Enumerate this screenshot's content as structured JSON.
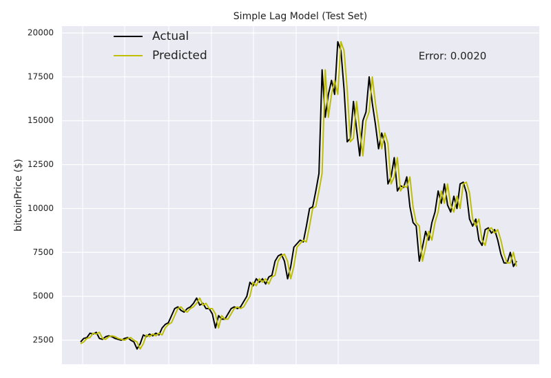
{
  "chart_data": {
    "type": "line",
    "title": "Simple Lag Model (Test Set)",
    "y_label": "bitcoinPrice ($)",
    "annotation": "Error: 0.0020",
    "categories": [
      null,
      null,
      null,
      null,
      null,
      null,
      null,
      null,
      null,
      null,
      null,
      null,
      null,
      null,
      null,
      null,
      null,
      null,
      null,
      null,
      null,
      null,
      null,
      null,
      null,
      null,
      null,
      null,
      null,
      null,
      null,
      null,
      null,
      null,
      null,
      null,
      null,
      null,
      null,
      null,
      null,
      null,
      null,
      null,
      null,
      null,
      null,
      null,
      null,
      null,
      null,
      null,
      null,
      null,
      null,
      null,
      null,
      null,
      null,
      null,
      null,
      null,
      null,
      null,
      null,
      null,
      null,
      null,
      null,
      null,
      null,
      null,
      null,
      null,
      null,
      null,
      null,
      null,
      null,
      null,
      null,
      null,
      null,
      null,
      null,
      null,
      null,
      null,
      null,
      null,
      null,
      null,
      null,
      null,
      null,
      null,
      null,
      null,
      null,
      null,
      null,
      null,
      null,
      null,
      null,
      null,
      null,
      null,
      null,
      null,
      null,
      null,
      null,
      null,
      null,
      null,
      null,
      null,
      null,
      null,
      null,
      null,
      null,
      null,
      null,
      null,
      null,
      null,
      null,
      null,
      null,
      null,
      null,
      null,
      null,
      null,
      null,
      null,
      null,
      null
    ],
    "series": [
      {
        "name": "Actual",
        "color": "#000000",
        "values": [
          2400,
          2600,
          2650,
          2900,
          2850,
          2950,
          2600,
          2550,
          2700,
          2750,
          2700,
          2600,
          2550,
          2500,
          2600,
          2650,
          2500,
          2400,
          2000,
          2300,
          2800,
          2700,
          2850,
          2750,
          2900,
          2800,
          3200,
          3400,
          3500,
          3900,
          4300,
          4400,
          4200,
          4100,
          4300,
          4400,
          4600,
          4900,
          4500,
          4600,
          4300,
          4300,
          4000,
          3200,
          3900,
          3700,
          3700,
          4000,
          4300,
          4400,
          4300,
          4400,
          4700,
          5000,
          5800,
          5600,
          6000,
          5800,
          6000,
          5700,
          6100,
          6200,
          7000,
          7300,
          7400,
          7000,
          6000,
          6700,
          7800,
          8000,
          8200,
          8100,
          9000,
          10000,
          10100,
          11000,
          12000,
          17900,
          15200,
          16500,
          17300,
          16500,
          19500,
          19000,
          16800,
          13800,
          14000,
          16100,
          14500,
          13000,
          15000,
          15500,
          17500,
          16000,
          14800,
          13400,
          14300,
          13700,
          11400,
          11800,
          12900,
          11000,
          11300,
          11200,
          11800,
          10100,
          9200,
          9000,
          7000,
          7800,
          8700,
          8200,
          9200,
          9800,
          11000,
          10300,
          11400,
          10200,
          9800,
          10700,
          10000,
          11400,
          11500,
          10900,
          9400,
          9000,
          9400,
          8200,
          7900,
          8800,
          8900,
          8600,
          8800,
          8200,
          7400,
          6900,
          6900,
          7500,
          6700,
          7000
        ]
      },
      {
        "name": "Predicted",
        "color": "#bfbf00",
        "values": [
          2300,
          2400,
          2600,
          2650,
          2900,
          2850,
          2950,
          2600,
          2550,
          2700,
          2750,
          2700,
          2600,
          2550,
          2500,
          2600,
          2650,
          2500,
          2400,
          2000,
          2300,
          2800,
          2700,
          2850,
          2750,
          2900,
          2800,
          3200,
          3400,
          3500,
          3900,
          4300,
          4400,
          4200,
          4100,
          4300,
          4400,
          4600,
          4900,
          4500,
          4600,
          4300,
          4300,
          4000,
          3200,
          3900,
          3700,
          3700,
          4000,
          4300,
          4400,
          4300,
          4400,
          4700,
          5000,
          5800,
          5600,
          6000,
          5800,
          6000,
          5700,
          6100,
          6200,
          7000,
          7300,
          7400,
          7000,
          6000,
          6700,
          7800,
          8000,
          8200,
          8100,
          9000,
          10000,
          10100,
          11000,
          12000,
          17900,
          15200,
          16500,
          17300,
          16500,
          19500,
          19000,
          16800,
          13800,
          14000,
          16100,
          14500,
          13000,
          15000,
          15500,
          17500,
          16000,
          14800,
          13400,
          14300,
          13700,
          11400,
          11800,
          12900,
          11000,
          11300,
          11200,
          11800,
          10100,
          9200,
          9000,
          7000,
          7800,
          8700,
          8200,
          9200,
          9800,
          11000,
          10300,
          11400,
          10200,
          9800,
          10700,
          10000,
          11400,
          11500,
          10900,
          9400,
          9000,
          9400,
          8200,
          7900,
          8800,
          8900,
          8600,
          8800,
          8200,
          7400,
          6900,
          6900,
          7500,
          6700
        ]
      }
    ],
    "ylim": [
      1130,
      20390
    ],
    "yticks": [
      2500,
      5000,
      7500,
      10000,
      12500,
      15000,
      17500,
      20000
    ],
    "grid": true,
    "legend": "upper left"
  }
}
